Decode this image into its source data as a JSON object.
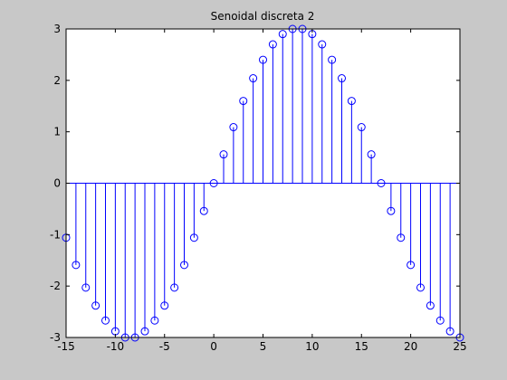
{
  "chart_data": {
    "type": "stem",
    "title": "Senoidal discreta 2",
    "xlabel": "",
    "ylabel": "",
    "xlim": [
      -15,
      25
    ],
    "ylim": [
      -3,
      3
    ],
    "xticks": [
      "-15",
      "-10",
      "-5",
      "0",
      "5",
      "10",
      "15",
      "20",
      "25"
    ],
    "yticks": [
      "-3",
      "-2",
      "-1",
      "0",
      "1",
      "2",
      "3"
    ],
    "grid": false,
    "legend": "none",
    "series": [
      {
        "x": [
          -15,
          -14,
          -13,
          -12,
          -11,
          -10,
          -9,
          -8,
          -7,
          -6,
          -5,
          -4,
          -3,
          -2,
          -1,
          0,
          1,
          2,
          3,
          4,
          5,
          6,
          7,
          8,
          9,
          10,
          11,
          12,
          13,
          14,
          15,
          16,
          17,
          18,
          19,
          20,
          21,
          22,
          23,
          24,
          25
        ],
        "values": [
          -1.06,
          -1.59,
          -2.03,
          -2.38,
          -2.67,
          -2.88,
          -3.0,
          -3.0,
          -2.88,
          -2.67,
          -2.38,
          -2.03,
          -1.59,
          -1.06,
          -0.54,
          0.0,
          0.56,
          1.09,
          1.6,
          2.04,
          2.4,
          2.7,
          2.9,
          3.0,
          3.0,
          2.9,
          2.7,
          2.4,
          2.04,
          1.6,
          1.09,
          0.56,
          0.0,
          -0.54,
          -1.06,
          -1.59,
          -2.03,
          -2.38,
          -2.67,
          -2.88,
          -3.0
        ]
      }
    ]
  },
  "style": {
    "background": "#c8c8c8",
    "axes_bg": "#ffffff",
    "stem_color": "#0000ff",
    "axis_color": "#000000"
  }
}
